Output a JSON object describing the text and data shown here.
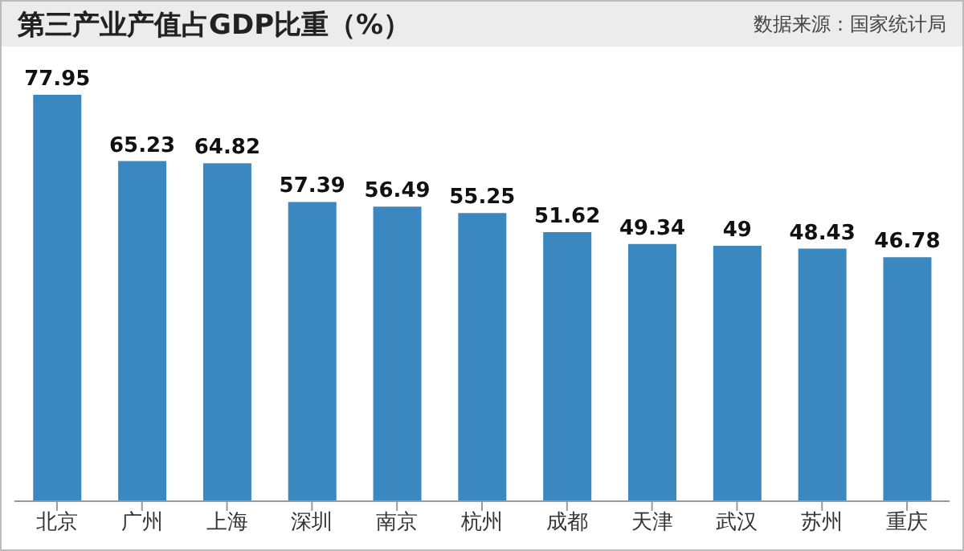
{
  "chart_data": {
    "type": "bar",
    "title": "第三产业产值占GDP比重（%）",
    "annotations": [
      "数据来源：国家统计局"
    ],
    "categories": [
      "北京",
      "广州",
      "上海",
      "深圳",
      "南京",
      "杭州",
      "成都",
      "天津",
      "武汉",
      "苏州",
      "重庆"
    ],
    "values": [
      77.95,
      65.23,
      64.82,
      57.39,
      56.49,
      55.25,
      51.62,
      49.34,
      49,
      48.43,
      46.78
    ],
    "color": "#3b87c0",
    "data_labels": true,
    "grid": false,
    "legend": false
  }
}
